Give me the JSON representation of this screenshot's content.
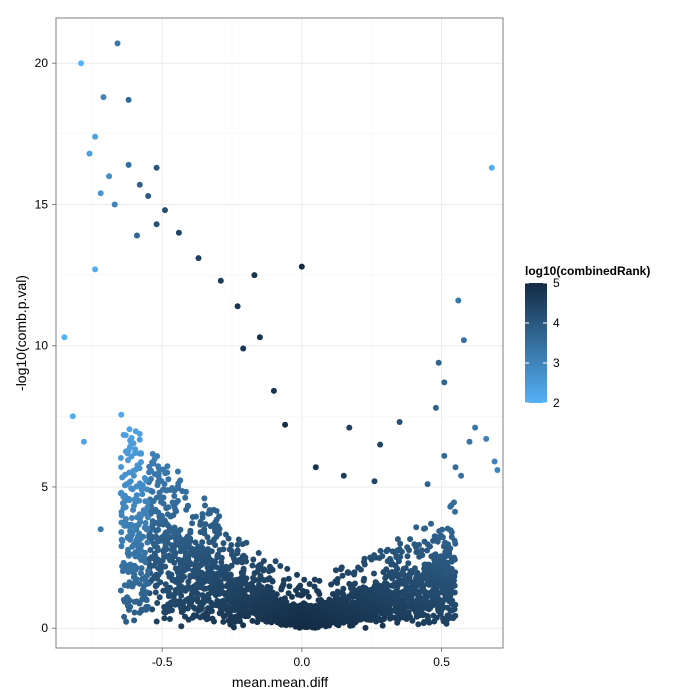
{
  "chart_data": {
    "type": "scatter",
    "xlabel": "mean.mean.diff",
    "ylabel": "-log10(comb.p.val)",
    "xlim": [
      -0.88,
      0.72
    ],
    "ylim": [
      -0.7,
      21.6
    ],
    "x_ticks": [
      -0.5,
      0.0,
      0.5
    ],
    "x_tick_labels": [
      "-0.5",
      "0.0",
      "0.5"
    ],
    "y_ticks": [
      0,
      5,
      10,
      15,
      20
    ],
    "y_tick_labels": [
      "0",
      "5",
      "10",
      "15",
      "20"
    ],
    "grid": true,
    "legend": {
      "title": "log10(combinedRank)",
      "placement": "right",
      "range": [
        2,
        5
      ],
      "ticks": [
        2,
        3,
        4,
        5
      ],
      "tick_labels": [
        "2",
        "3",
        "4",
        "5"
      ],
      "color_low": "#56B1F7",
      "color_high": "#132B43"
    },
    "dense_region_x_range": [
      -0.65,
      0.55
    ],
    "outlier_points": [
      {
        "x": -0.79,
        "y": 20.0,
        "c": 2.0
      },
      {
        "x": -0.66,
        "y": 20.7,
        "c": 3.3
      },
      {
        "x": -0.71,
        "y": 18.8,
        "c": 3.0
      },
      {
        "x": -0.62,
        "y": 18.7,
        "c": 3.6
      },
      {
        "x": -0.74,
        "y": 17.4,
        "c": 2.3
      },
      {
        "x": -0.76,
        "y": 16.8,
        "c": 2.4
      },
      {
        "x": -0.62,
        "y": 16.4,
        "c": 3.5
      },
      {
        "x": -0.52,
        "y": 16.3,
        "c": 4.0
      },
      {
        "x": -0.69,
        "y": 16.0,
        "c": 2.8
      },
      {
        "x": -0.58,
        "y": 15.7,
        "c": 3.8
      },
      {
        "x": -0.55,
        "y": 15.3,
        "c": 3.9
      },
      {
        "x": -0.72,
        "y": 15.4,
        "c": 2.6
      },
      {
        "x": -0.67,
        "y": 15.0,
        "c": 3.0
      },
      {
        "x": -0.49,
        "y": 14.8,
        "c": 4.2
      },
      {
        "x": -0.52,
        "y": 14.3,
        "c": 4.1
      },
      {
        "x": -0.44,
        "y": 14.0,
        "c": 4.4
      },
      {
        "x": -0.59,
        "y": 13.9,
        "c": 3.7
      },
      {
        "x": -0.74,
        "y": 12.7,
        "c": 2.1
      },
      {
        "x": -0.37,
        "y": 13.1,
        "c": 4.5
      },
      {
        "x": -0.17,
        "y": 12.5,
        "c": 4.8
      },
      {
        "x": 0.0,
        "y": 12.8,
        "c": 5.0
      },
      {
        "x": -0.29,
        "y": 12.3,
        "c": 4.6
      },
      {
        "x": -0.85,
        "y": 10.3,
        "c": 2.0
      },
      {
        "x": -0.82,
        "y": 7.5,
        "c": 2.1
      },
      {
        "x": -0.78,
        "y": 6.6,
        "c": 2.3
      },
      {
        "x": -0.23,
        "y": 11.4,
        "c": 4.7
      },
      {
        "x": -0.15,
        "y": 10.3,
        "c": 4.8
      },
      {
        "x": -0.21,
        "y": 9.9,
        "c": 4.7
      },
      {
        "x": 0.56,
        "y": 11.6,
        "c": 3.3
      },
      {
        "x": 0.58,
        "y": 10.2,
        "c": 3.4
      },
      {
        "x": 0.68,
        "y": 16.3,
        "c": 2.1
      },
      {
        "x": 0.49,
        "y": 9.4,
        "c": 3.7
      },
      {
        "x": 0.51,
        "y": 8.7,
        "c": 3.7
      },
      {
        "x": 0.48,
        "y": 7.8,
        "c": 3.8
      },
      {
        "x": 0.35,
        "y": 7.3,
        "c": 4.2
      },
      {
        "x": 0.17,
        "y": 7.1,
        "c": 4.5
      },
      {
        "x": 0.28,
        "y": 6.5,
        "c": 4.4
      },
      {
        "x": 0.62,
        "y": 7.1,
        "c": 3.3
      },
      {
        "x": 0.6,
        "y": 6.6,
        "c": 3.4
      },
      {
        "x": 0.66,
        "y": 6.7,
        "c": 3.1
      },
      {
        "x": 0.69,
        "y": 5.9,
        "c": 3.0
      },
      {
        "x": 0.7,
        "y": 5.6,
        "c": 3.0
      },
      {
        "x": 0.55,
        "y": 5.7,
        "c": 3.5
      },
      {
        "x": 0.57,
        "y": 5.4,
        "c": 3.4
      },
      {
        "x": 0.51,
        "y": 6.1,
        "c": 3.6
      },
      {
        "x": 0.45,
        "y": 5.1,
        "c": 3.8
      },
      {
        "x": 0.26,
        "y": 5.2,
        "c": 4.4
      },
      {
        "x": 0.15,
        "y": 5.4,
        "c": 4.6
      },
      {
        "x": 0.05,
        "y": 5.7,
        "c": 4.8
      },
      {
        "x": -0.1,
        "y": 8.4,
        "c": 4.8
      },
      {
        "x": -0.06,
        "y": 7.2,
        "c": 4.9
      },
      {
        "x": -0.72,
        "y": 3.5,
        "c": 3.2
      }
    ]
  }
}
